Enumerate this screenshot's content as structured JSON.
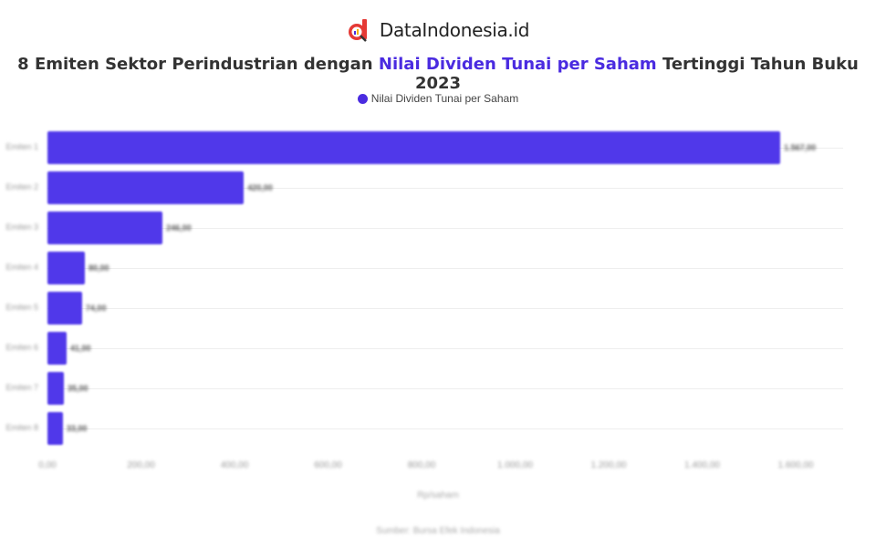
{
  "brand": {
    "name": "DataIndonesia.id",
    "logo_color": "#e53935"
  },
  "header": {
    "title_prefix": "8 Emiten Sektor Perindustrian dengan ",
    "title_highlight": "Nilai Dividen Tunai per Saham",
    "title_suffix": " Tertinggi Tahun Buku 2023"
  },
  "legend": {
    "label": "Nilai Dividen Tunai per Saham",
    "color": "#4a2be0"
  },
  "footer": {
    "source": "Sumber: Bursa Efek Indonesia"
  },
  "chart_data": {
    "type": "bar",
    "orientation": "horizontal",
    "title": "8 Emiten Sektor Perindustrian dengan Nilai Dividen Tunai per Saham Tertinggi Tahun Buku 2023",
    "categories": [
      "Emiten 1",
      "Emiten 2",
      "Emiten 3",
      "Emiten 4",
      "Emiten 5",
      "Emiten 6",
      "Emiten 7",
      "Emiten 8"
    ],
    "series": [
      {
        "name": "Nilai Dividen Tunai per Saham",
        "color": "#5038ea",
        "values": [
          1567,
          420,
          246,
          80,
          74,
          41,
          35,
          33
        ],
        "labels": [
          "1.567,00",
          "420,00",
          "246,00",
          "80,00",
          "74,00",
          "41,00",
          "35,00",
          "33,00"
        ]
      }
    ],
    "xlabel": "Rp/saham",
    "ylabel": "",
    "xlim": [
      0,
      1600
    ],
    "xticks": [
      "0,00",
      "200,00",
      "400,00",
      "600,00",
      "800,00",
      "1.000,00",
      "1.200,00",
      "1.400,00",
      "1.600,00"
    ],
    "grid": true,
    "legend_position": "top"
  }
}
